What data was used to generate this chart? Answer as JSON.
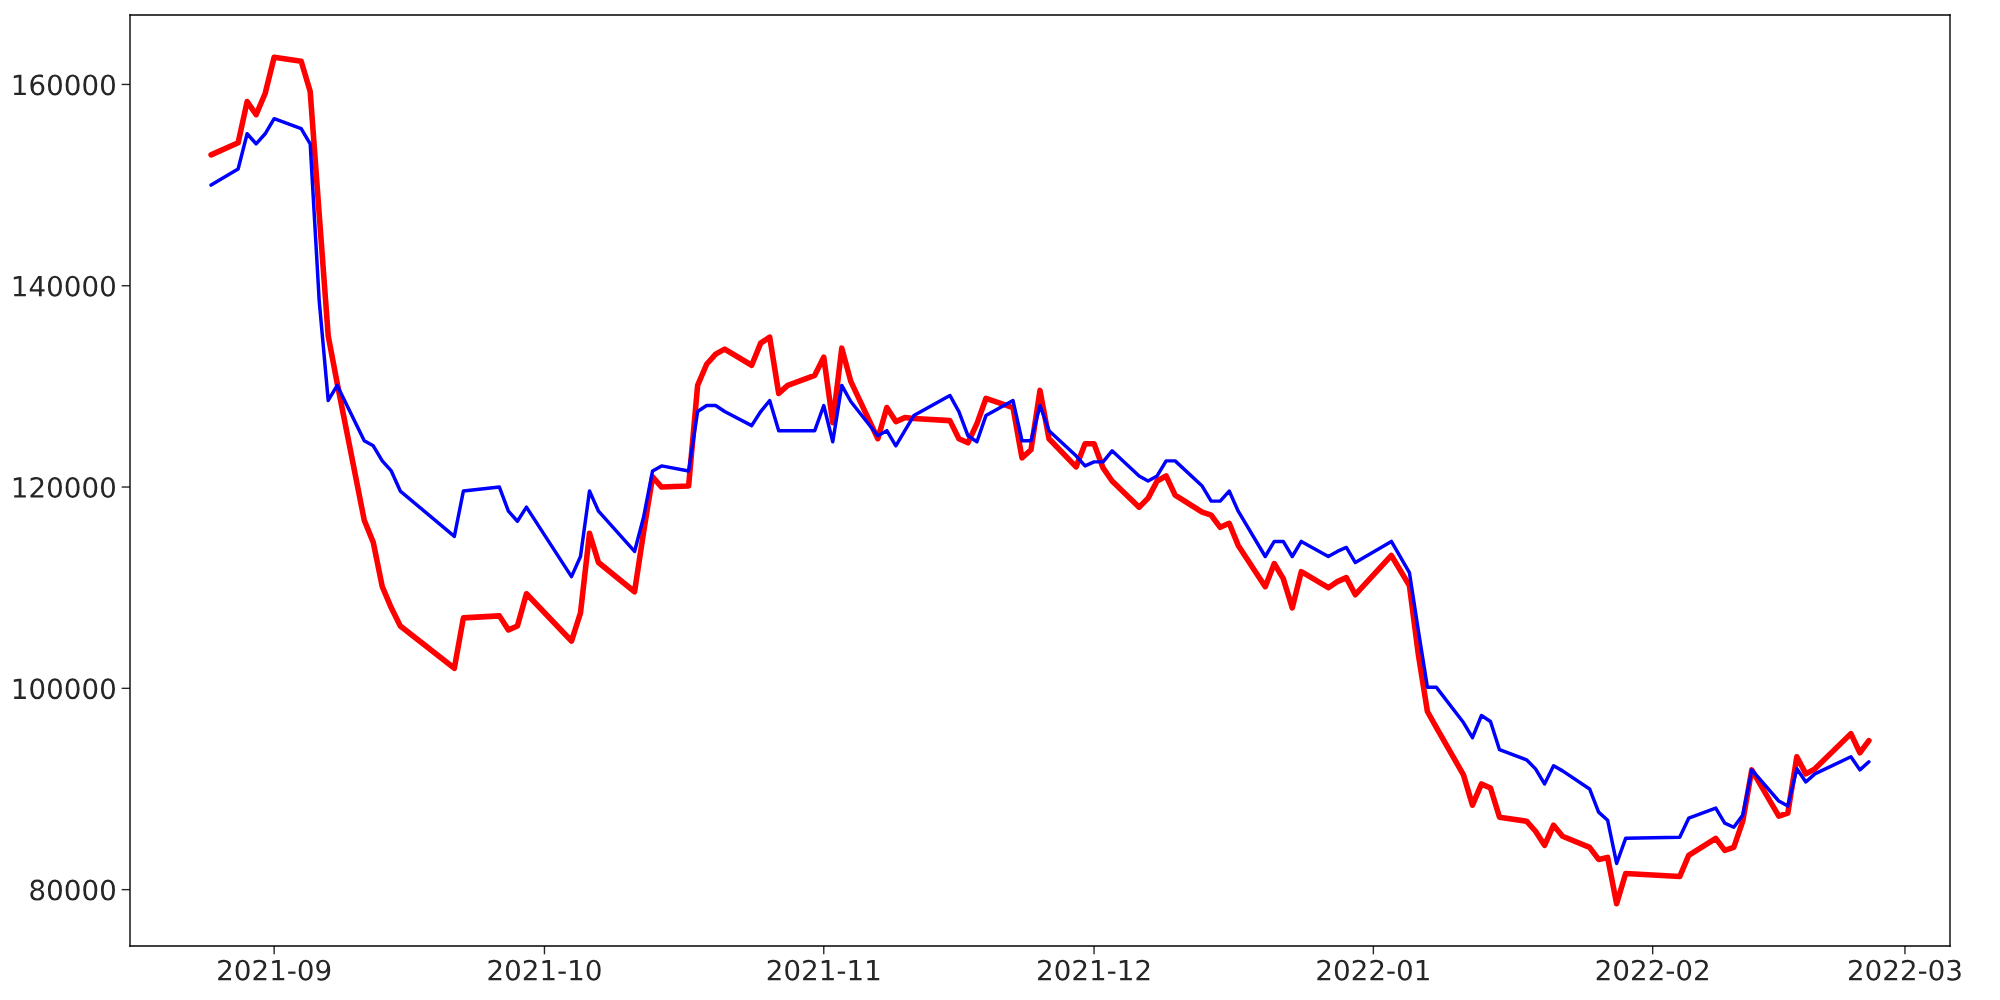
{
  "chart_data": {
    "type": "line",
    "x": [
      "2021-08-25",
      "2021-08-28",
      "2021-08-29",
      "2021-08-30",
      "2021-08-31",
      "2021-09-01",
      "2021-09-04",
      "2021-09-05",
      "2021-09-06",
      "2021-09-07",
      "2021-09-08",
      "2021-09-11",
      "2021-09-12",
      "2021-09-13",
      "2021-09-14",
      "2021-09-15",
      "2021-09-21",
      "2021-09-22",
      "2021-09-26",
      "2021-09-27",
      "2021-09-28",
      "2021-09-29",
      "2021-10-04",
      "2021-10-05",
      "2021-10-06",
      "2021-10-07",
      "2021-10-11",
      "2021-10-12",
      "2021-10-13",
      "2021-10-14",
      "2021-10-17",
      "2021-10-18",
      "2021-10-19",
      "2021-10-20",
      "2021-10-21",
      "2021-10-24",
      "2021-10-25",
      "2021-10-26",
      "2021-10-27",
      "2021-10-28",
      "2021-10-31",
      "2021-11-01",
      "2021-11-02",
      "2021-11-03",
      "2021-11-04",
      "2021-11-07",
      "2021-11-08",
      "2021-11-09",
      "2021-11-10",
      "2021-11-11",
      "2021-11-15",
      "2021-11-16",
      "2021-11-17",
      "2021-11-18",
      "2021-11-19",
      "2021-11-22",
      "2021-11-23",
      "2021-11-24",
      "2021-11-25",
      "2021-11-26",
      "2021-11-29",
      "2021-11-30",
      "2021-12-01",
      "2021-12-02",
      "2021-12-03",
      "2021-12-06",
      "2021-12-07",
      "2021-12-08",
      "2021-12-09",
      "2021-12-10",
      "2021-12-13",
      "2021-12-14",
      "2021-12-15",
      "2021-12-16",
      "2021-12-17",
      "2021-12-20",
      "2021-12-21",
      "2021-12-22",
      "2021-12-23",
      "2021-12-24",
      "2021-12-27",
      "2021-12-28",
      "2021-12-29",
      "2021-12-30",
      "2022-01-03",
      "2022-01-05",
      "2022-01-06",
      "2022-01-07",
      "2022-01-08",
      "2022-01-11",
      "2022-01-12",
      "2022-01-13",
      "2022-01-14",
      "2022-01-15",
      "2022-01-18",
      "2022-01-19",
      "2022-01-20",
      "2022-01-21",
      "2022-01-22",
      "2022-01-25",
      "2022-01-26",
      "2022-01-27",
      "2022-01-28",
      "2022-01-29",
      "2022-02-04",
      "2022-02-05",
      "2022-02-08",
      "2022-02-09",
      "2022-02-10",
      "2022-02-11",
      "2022-02-12",
      "2022-02-15",
      "2022-02-16",
      "2022-02-17",
      "2022-02-18",
      "2022-02-19",
      "2022-02-23",
      "2022-02-24",
      "2022-02-25"
    ],
    "series": [
      {
        "color": "#ff0000",
        "values": [
          153000,
          154200,
          158300,
          157000,
          159100,
          162700,
          162300,
          159300,
          147100,
          135000,
          130300,
          116700,
          114500,
          110100,
          108000,
          106200,
          102000,
          107000,
          107200,
          105800,
          106200,
          109400,
          104700,
          107500,
          115400,
          112500,
          109600,
          115500,
          121000,
          120000,
          120100,
          130100,
          132200,
          133200,
          133700,
          132100,
          134300,
          134900,
          129300,
          130100,
          131100,
          132900,
          126400,
          133800,
          130500,
          124800,
          127900,
          126500,
          126900,
          126800,
          126600,
          124800,
          124400,
          126300,
          128800,
          127900,
          122900,
          123700,
          129600,
          124800,
          122000,
          124300,
          124300,
          121900,
          120600,
          118000,
          118900,
          120600,
          121100,
          119200,
          117500,
          117200,
          116000,
          116400,
          114200,
          110100,
          112400,
          110900,
          108000,
          111600,
          110000,
          110600,
          111000,
          109300,
          113200,
          110200,
          103300,
          97700,
          96100,
          91400,
          88400,
          90500,
          90100,
          87200,
          86800,
          85800,
          84400,
          86400,
          85300,
          84200,
          83000,
          83200,
          78600,
          81600,
          81300,
          83400,
          85100,
          83900,
          84200,
          86800,
          91900,
          87300,
          87600,
          93200,
          91500,
          92000,
          95500,
          93600,
          94800
        ]
      },
      {
        "color": "#0000ff",
        "values": [
          150000,
          151600,
          155100,
          154100,
          155100,
          156600,
          155600,
          154100,
          138500,
          128600,
          130100,
          124600,
          124100,
          122600,
          121600,
          119600,
          115100,
          119600,
          120000,
          117600,
          116600,
          118000,
          111100,
          113100,
          119600,
          117600,
          113600,
          117000,
          121600,
          122100,
          121600,
          127500,
          128100,
          128100,
          127500,
          126100,
          127500,
          128600,
          125600,
          125600,
          125600,
          128100,
          124500,
          130100,
          128500,
          125100,
          125600,
          124100,
          125600,
          127100,
          129100,
          127500,
          125100,
          124500,
          127100,
          128600,
          124600,
          124600,
          128100,
          125600,
          123100,
          122100,
          122500,
          122500,
          123600,
          121100,
          120600,
          121100,
          122600,
          122600,
          120100,
          118600,
          118600,
          119600,
          117600,
          113100,
          114600,
          114600,
          113100,
          114600,
          113100,
          113600,
          114000,
          112500,
          114600,
          111500,
          105700,
          100100,
          100100,
          96600,
          95100,
          97300,
          96700,
          93900,
          92900,
          92000,
          90500,
          92300,
          91800,
          90000,
          87700,
          86900,
          82600,
          85100,
          85200,
          87100,
          88100,
          86600,
          86200,
          87400,
          91900,
          88800,
          88300,
          92000,
          90700,
          91500,
          93200,
          91900,
          92700
        ]
      }
    ],
    "xlim": [
      "2021-08-16",
      "2022-03-06"
    ],
    "xticks": [
      "2021-09",
      "2021-10",
      "2021-11",
      "2021-12",
      "2022-01",
      "2022-02",
      "2022-03"
    ],
    "ylim": [
      74400,
      166900
    ],
    "yticks": [
      80000,
      100000,
      120000,
      140000,
      160000
    ],
    "grid": false,
    "legend": false,
    "line_style": "solid"
  }
}
